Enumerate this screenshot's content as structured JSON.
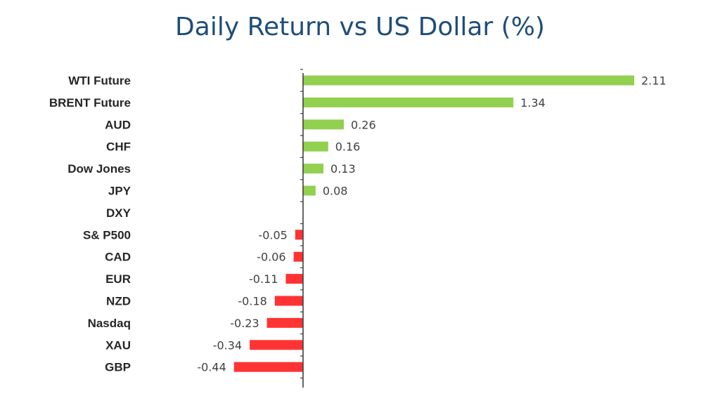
{
  "chart_data": {
    "type": "bar",
    "orientation": "horizontal",
    "title": "Daily Return vs US Dollar (%)",
    "xlabel": "",
    "ylabel": "",
    "categories": [
      "WTI Future",
      "BRENT Future",
      "AUD",
      "CHF",
      "Dow Jones",
      "JPY",
      "DXY",
      "S& P500",
      "CAD",
      "EUR",
      "NZD",
      "Nasdaq",
      "XAU",
      "GBP"
    ],
    "values": [
      2.11,
      1.34,
      0.26,
      0.16,
      0.13,
      0.08,
      0,
      -0.05,
      -0.06,
      -0.11,
      -0.18,
      -0.23,
      -0.34,
      -0.44
    ],
    "value_labels": [
      "2.11",
      "1.34",
      "0.26",
      "0.16",
      "0.13",
      "0.08",
      "",
      "-0.05",
      "-0.06",
      "-0.11",
      "-0.18",
      "-0.23",
      "-0.34",
      "-0.44"
    ],
    "xlim": [
      -0.44,
      2.11
    ],
    "grid": false,
    "legend": "none",
    "colors": {
      "positive": "#92d050",
      "negative": "#ff3333",
      "axis": "#404040",
      "title": "#1f4e79"
    }
  }
}
